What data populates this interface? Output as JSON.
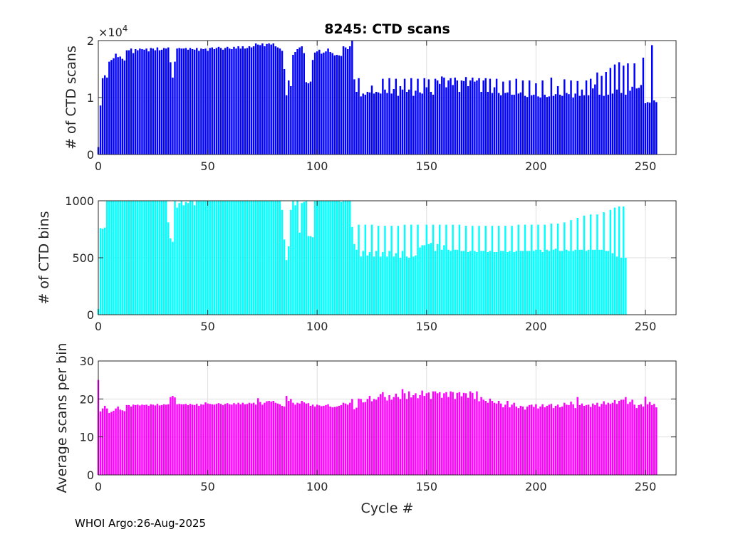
{
  "chart_data": [
    {
      "type": "bar",
      "title": "8245: CTD scans",
      "xlabel": "",
      "ylabel": "# of CTD scans",
      "exponent_label": "×10",
      "exponent_power": "4",
      "color": "#0000ff",
      "xlim": [
        0,
        264
      ],
      "ylim": [
        0,
        2
      ],
      "xticks": [
        0,
        50,
        100,
        150,
        200,
        250
      ],
      "yticks": [
        0,
        1,
        2
      ],
      "x_start": 0,
      "values": [
        0.13,
        0.86,
        1.34,
        1.39,
        1.35,
        1.63,
        1.66,
        1.69,
        1.77,
        1.71,
        1.72,
        1.68,
        1.65,
        1.83,
        1.83,
        1.86,
        1.78,
        1.85,
        1.83,
        1.86,
        1.85,
        1.84,
        1.86,
        1.81,
        1.87,
        1.86,
        1.83,
        1.88,
        1.83,
        1.84,
        1.87,
        1.86,
        1.88,
        1.62,
        1.35,
        1.63,
        1.86,
        1.87,
        1.86,
        1.86,
        1.87,
        1.84,
        1.87,
        1.85,
        1.84,
        1.87,
        1.82,
        1.86,
        1.85,
        1.86,
        1.82,
        1.87,
        1.88,
        1.85,
        1.87,
        1.89,
        1.87,
        1.84,
        1.87,
        1.89,
        1.86,
        1.85,
        1.89,
        1.86,
        1.9,
        1.86,
        1.9,
        1.86,
        1.87,
        1.9,
        1.88,
        1.9,
        1.95,
        1.93,
        1.92,
        1.95,
        1.9,
        1.94,
        1.95,
        1.93,
        1.95,
        1.9,
        1.88,
        1.86,
        1.82,
        1.5,
        1.04,
        1.3,
        1.2,
        1.75,
        1.8,
        1.85,
        1.88,
        1.9,
        1.78,
        1.27,
        1.25,
        1.28,
        1.66,
        1.79,
        1.81,
        1.84,
        1.77,
        1.79,
        1.81,
        1.86,
        1.8,
        1.78,
        1.74,
        1.75,
        1.74,
        1.73,
        1.9,
        1.88,
        1.85,
        1.9,
        2.0,
        1.32,
        1.1,
        1.34,
        1.02,
        1.07,
        1.05,
        1.1,
        1.09,
        1.21,
        1.07,
        1.1,
        1.09,
        1.07,
        1.33,
        1.14,
        1.08,
        1.34,
        1.07,
        1.15,
        1.33,
        1.03,
        1.2,
        1.14,
        1.33,
        1.1,
        1.14,
        1.34,
        1.03,
        1.12,
        1.33,
        1.09,
        1.07,
        1.34,
        1.18,
        1.32,
        1.1,
        1.05,
        1.33,
        1.3,
        1.24,
        1.37,
        1.35,
        1.18,
        1.3,
        1.34,
        1.22,
        1.35,
        1.3,
        1.1,
        1.3,
        1.29,
        1.36,
        1.2,
        1.3,
        1.35,
        1.28,
        1.3,
        1.34,
        1.1,
        1.3,
        1.34,
        1.1,
        1.33,
        1.08,
        1.18,
        1.33,
        1.08,
        1.04,
        1.28,
        1.08,
        1.09,
        1.3,
        1.05,
        1.05,
        1.33,
        1.07,
        1.09,
        1.3,
        1.03,
        1.01,
        1.3,
        1.04,
        1.05,
        1.25,
        1.02,
        1.0,
        1.3,
        1.05,
        1.01,
        1.02,
        1.35,
        1.03,
        1.06,
        1.2,
        1.05,
        1.03,
        1.32,
        1.08,
        1.06,
        1.3,
        1.0,
        1.07,
        1.29,
        1.03,
        1.14,
        1.04,
        1.3,
        1.04,
        1.33,
        1.16,
        1.23,
        1.44,
        1.05,
        1.38,
        1.03,
        1.45,
        1.05,
        1.52,
        1.07,
        1.58,
        1.14,
        1.62,
        1.08,
        1.56,
        1.05,
        1.6,
        1.12,
        1.19,
        1.6,
        1.16,
        1.17,
        1.22,
        1.7,
        0.9,
        0.92,
        0.91,
        1.92,
        0.95,
        0.92
      ]
    },
    {
      "type": "bar",
      "title": "",
      "xlabel": "",
      "ylabel": "# of CTD bins",
      "color": "#00ffff",
      "xlim": [
        0,
        264
      ],
      "ylim": [
        0,
        1000
      ],
      "xticks": [
        0,
        50,
        100,
        150,
        200,
        250
      ],
      "yticks": [
        0,
        500,
        1000
      ],
      "x_start": 0,
      "values": [
        50,
        760,
        755,
        765,
        1000,
        1000,
        1000,
        1000,
        1000,
        1000,
        1000,
        1000,
        1000,
        1000,
        1000,
        1000,
        1000,
        1000,
        1000,
        1000,
        1000,
        1000,
        1000,
        1000,
        1000,
        1000,
        1000,
        1000,
        1000,
        1000,
        1000,
        1000,
        810,
        670,
        640,
        1000,
        940,
        980,
        1000,
        960,
        990,
        980,
        1000,
        1000,
        960,
        1000,
        1000,
        1000,
        1000,
        1000,
        1000,
        1000,
        1000,
        1000,
        1000,
        1000,
        1000,
        1000,
        1000,
        1000,
        1000,
        1000,
        1000,
        1000,
        1000,
        1000,
        1000,
        1000,
        1000,
        1000,
        1000,
        1000,
        1000,
        1000,
        1000,
        1000,
        1000,
        1000,
        1000,
        1000,
        1000,
        1000,
        1000,
        1000,
        920,
        660,
        480,
        600,
        920,
        1000,
        960,
        1000,
        720,
        980,
        990,
        1000,
        690,
        690,
        680,
        1000,
        1000,
        1000,
        1000,
        1000,
        1000,
        1000,
        1000,
        1000,
        1000,
        1000,
        1000,
        990,
        1000,
        1000,
        1000,
        1000,
        770,
        620,
        570,
        790,
        510,
        560,
        790,
        520,
        550,
        790,
        510,
        560,
        780,
        510,
        550,
        780,
        510,
        560,
        780,
        510,
        540,
        780,
        500,
        560,
        790,
        510,
        500,
        790,
        510,
        520,
        790,
        590,
        610,
        610,
        790,
        620,
        630,
        790,
        560,
        620,
        790,
        570,
        610,
        790,
        570,
        560,
        790,
        570,
        570,
        790,
        560,
        560,
        780,
        550,
        560,
        780,
        560,
        550,
        780,
        560,
        560,
        780,
        550,
        560,
        780,
        550,
        550,
        780,
        560,
        560,
        780,
        550,
        560,
        780,
        550,
        560,
        790,
        560,
        560,
        790,
        560,
        560,
        790,
        560,
        570,
        790,
        570,
        550,
        790,
        570,
        560,
        800,
        570,
        580,
        800,
        560,
        560,
        810,
        570,
        560,
        830,
        560,
        570,
        850,
        570,
        570,
        870,
        560,
        570,
        880,
        570,
        570,
        880,
        570,
        570,
        900,
        560,
        560,
        920,
        540,
        940,
        510,
        950,
        500,
        950,
        500
      ]
    },
    {
      "type": "bar",
      "title": "",
      "xlabel": "Cycle #",
      "ylabel": "Average scans per bin",
      "color": "#ff00ff",
      "xlim": [
        0,
        264
      ],
      "ylim": [
        0,
        30
      ],
      "xticks": [
        0,
        50,
        100,
        150,
        200,
        250
      ],
      "yticks": [
        0,
        10,
        20,
        30
      ],
      "x_start": 0,
      "values": [
        25.0,
        16.7,
        17.5,
        18.2,
        17.5,
        16.3,
        16.6,
        16.9,
        17.5,
        18.0,
        17.2,
        17.0,
        16.8,
        18.4,
        18.4,
        18.0,
        18.5,
        18.4,
        18.5,
        18.3,
        18.5,
        18.4,
        18.5,
        18.2,
        18.6,
        18.5,
        18.3,
        18.7,
        18.3,
        18.4,
        18.6,
        18.5,
        18.6,
        20.5,
        20.8,
        20.4,
        18.6,
        18.7,
        18.6,
        18.6,
        18.7,
        18.4,
        18.7,
        18.5,
        18.4,
        18.7,
        18.2,
        18.6,
        18.5,
        19.1,
        18.8,
        18.7,
        18.6,
        18.5,
        18.7,
        18.9,
        18.7,
        18.4,
        18.7,
        18.9,
        18.6,
        18.5,
        18.9,
        18.6,
        19.0,
        18.6,
        19.0,
        18.6,
        18.7,
        19.0,
        18.8,
        19.0,
        18.5,
        20.2,
        19.2,
        18.5,
        19.0,
        19.4,
        19.5,
        19.3,
        19.5,
        19.0,
        18.8,
        18.6,
        18.2,
        18.0,
        20.8,
        19.5,
        20.0,
        19.0,
        18.5,
        19.0,
        18.8,
        19.5,
        19.1,
        18.8,
        18.9,
        18.2,
        18.5,
        18.0,
        18.5,
        18.3,
        18.1,
        18.2,
        18.4,
        18.6,
        18.0,
        17.8,
        17.9,
        18.0,
        18.2,
        18.4,
        19.0,
        18.8,
        18.5,
        19.0,
        20.0,
        17.3,
        17.7,
        20.1,
        20.0,
        19.1,
        19.2,
        20.0,
        20.8,
        19.4,
        20.0,
        19.8,
        20.5,
        21.3,
        21.8,
        20.5,
        19.6,
        21.0,
        19.8,
        20.5,
        21.4,
        20.5,
        20.0,
        22.6,
        21.5,
        20.0,
        22.0,
        20.4,
        21.0,
        21.5,
        20.2,
        21.0,
        22.2,
        20.8,
        21.5,
        21.7,
        20.0,
        22.0,
        22.0,
        21.5,
        21.8,
        20.3,
        21.5,
        21.8,
        20.5,
        22.0,
        21.8,
        20.0,
        21.6,
        21.8,
        20.7,
        21.6,
        21.5,
        20.3,
        22.0,
        21.6,
        20.0,
        22.0,
        19.4,
        20.5,
        19.8,
        19.5,
        19.0,
        20.1,
        19.5,
        19.0,
        18.8,
        19.5,
        18.8,
        17.8,
        18.5,
        19.5,
        17.8,
        18.5,
        19.0,
        18.0,
        17.6,
        18.2,
        18.0,
        17.2,
        18.0,
        18.4,
        18.5,
        17.9,
        18.6,
        17.5,
        18.0,
        18.6,
        17.8,
        18.2,
        18.5,
        18.7,
        17.6,
        18.2,
        18.5,
        17.8,
        18.0,
        19.0,
        18.5,
        18.4,
        19.3,
        18.6,
        17.6,
        20.5,
        18.4,
        18.8,
        18.2,
        18.4,
        18.5,
        17.9,
        18.8,
        18.4,
        19.0,
        18.0,
        18.7,
        19.4,
        18.5,
        19.0,
        18.7,
        19.0,
        19.7,
        18.7,
        19.5,
        19.8,
        19.8,
        20.5,
        18.7,
        19.2,
        19.8,
        18.5,
        17.6,
        18.4,
        18.6,
        18.0,
        20.6,
        18.6,
        19.2,
        18.4,
        18.7,
        17.8
      ]
    }
  ],
  "footer": "WHOI Argo:26-Aug-2025"
}
